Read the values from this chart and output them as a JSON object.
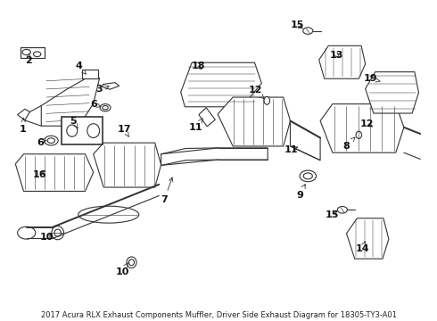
{
  "title": "2017 Acura RLX Exhaust Components Muffler, Driver Side Exhaust Diagram for 18305-TY3-A01",
  "bg_color": "#ffffff",
  "line_color": "#333333",
  "label_color": "#111111",
  "label_fontsize": 8,
  "title_fontsize": 6.0,
  "fig_width": 4.9,
  "fig_height": 3.6,
  "dpi": 100
}
